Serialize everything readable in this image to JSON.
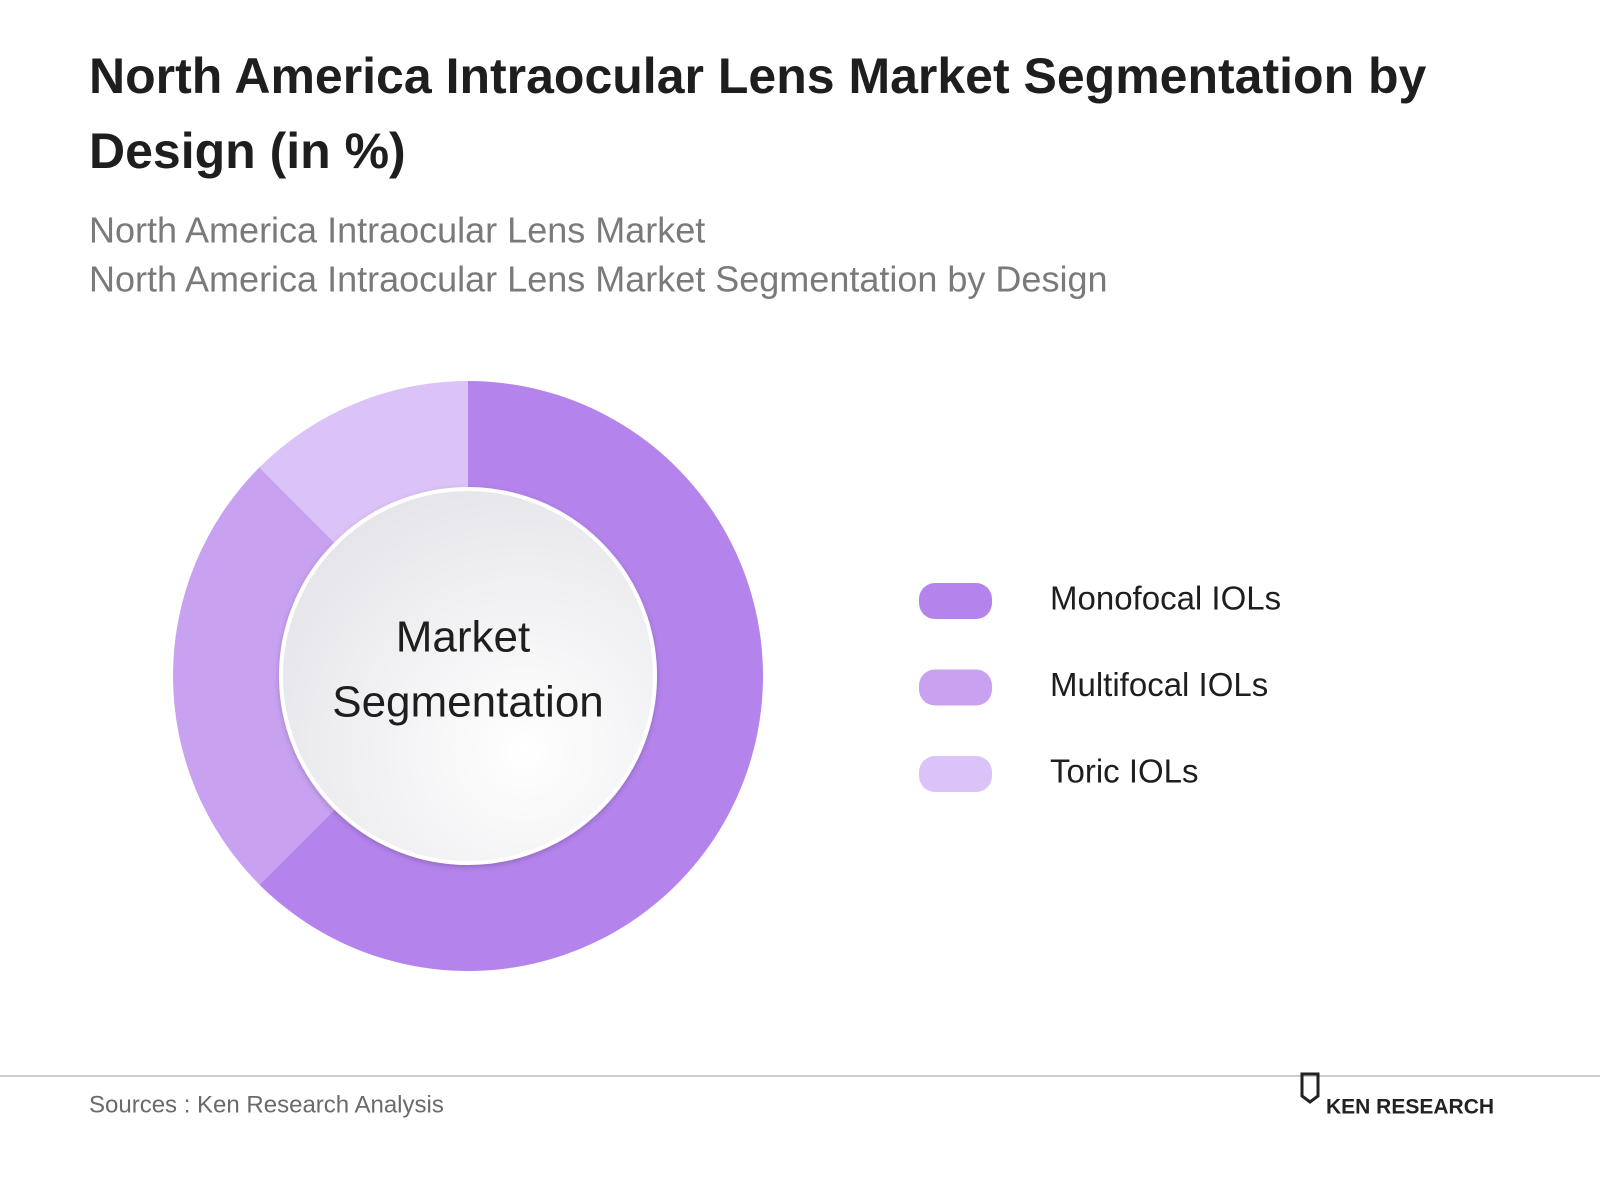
{
  "chart_data": {
    "type": "donut",
    "title_lines": [
      "North America Intraocular Lens Market Segmentation by",
      "Design (in %)"
    ],
    "subtitle_lines": [
      "North America Intraocular Lens Market",
      "North America Intraocular Lens Market Segmentation by Design"
    ],
    "center_label": [
      "Market",
      "Segmentation"
    ],
    "categories": [
      "Monofocal IOLs",
      "Multifocal IOLs",
      "Toric IOLs"
    ],
    "values": [
      62.5,
      25,
      12.5
    ],
    "colors": [
      "#b484ec",
      "#c8a2f0",
      "#dcc3f7"
    ],
    "legend": "right",
    "source": "Sources : Ken Research Analysis",
    "logo": "KEN RESEARCH"
  }
}
